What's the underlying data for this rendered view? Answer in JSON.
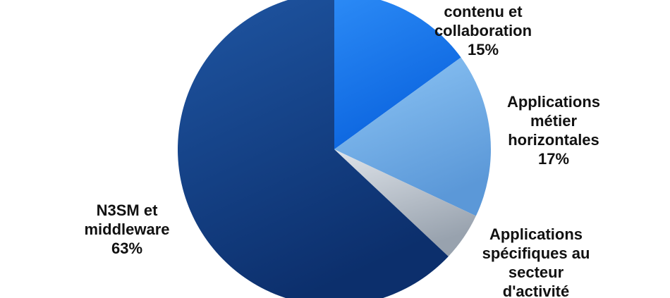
{
  "chart_data": {
    "type": "pie",
    "slices": [
      {
        "key": "collab",
        "lines": [
          "contenu et",
          "collaboration",
          "15%"
        ],
        "value": 15,
        "color_light": "#2c8bf6",
        "color_dark": "#0a63de"
      },
      {
        "key": "horiz",
        "lines": [
          "Applications",
          "métier",
          "horizontales",
          "17%"
        ],
        "value": 17,
        "color_light": "#8ec6f6",
        "color_dark": "#5b98d8"
      },
      {
        "key": "spec",
        "lines": [
          "Applications",
          "spécifiques au",
          "secteur",
          "d'activité"
        ],
        "value": 5,
        "color_light": "#dfe4ea",
        "color_dark": "#98a2ae"
      },
      {
        "key": "n3sm",
        "lines": [
          "N3SM et",
          "middleware",
          "63%"
        ],
        "value": 63,
        "color_light": "#1f56a3",
        "color_dark": "#0c2f6c"
      }
    ]
  }
}
